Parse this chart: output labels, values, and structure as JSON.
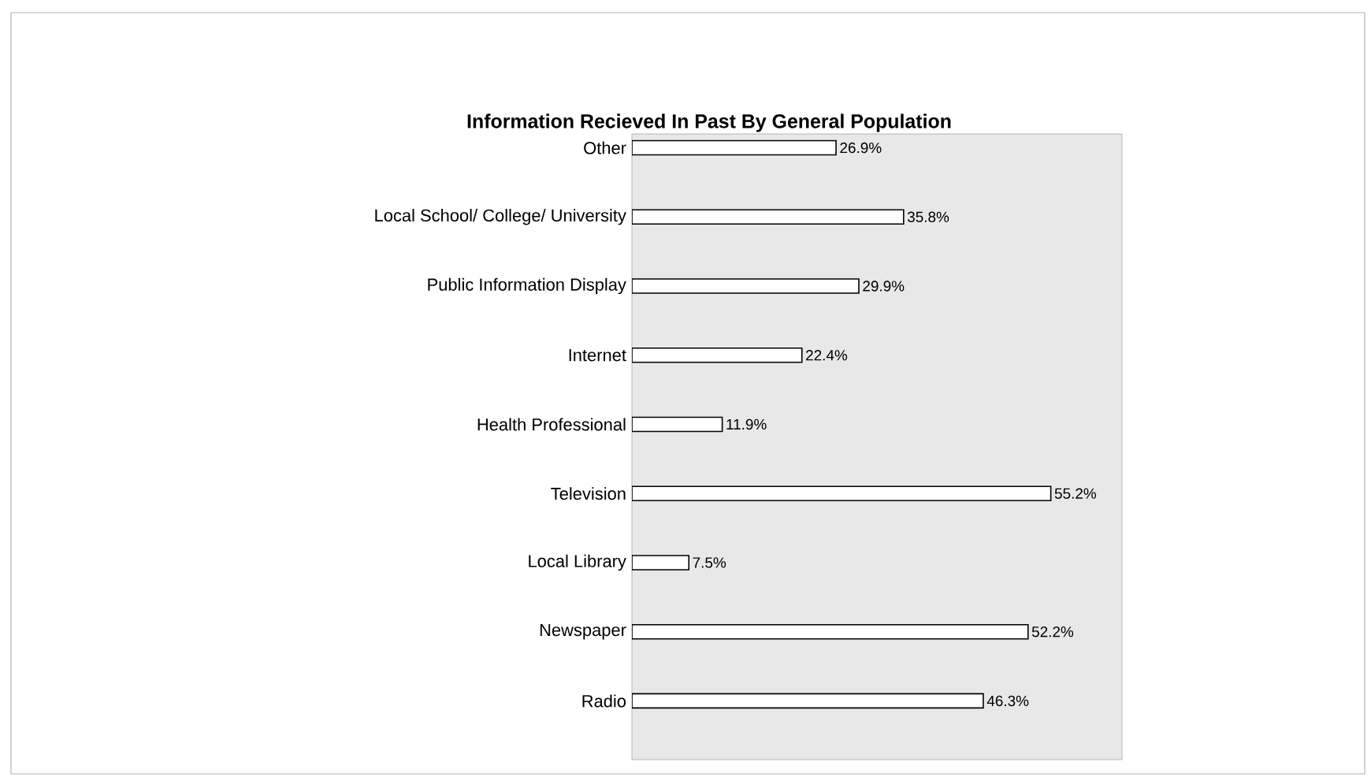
{
  "chart_data": {
    "type": "bar",
    "orientation": "horizontal",
    "title": "Information Recieved In Past By General Population",
    "categories": [
      "Other",
      "Local School/ College/ University",
      "Public Information Display",
      "Internet",
      "Health Professional",
      "Television",
      "Local Library",
      "Newspaper",
      "Radio"
    ],
    "values": [
      26.9,
      35.8,
      29.9,
      22.4,
      11.9,
      55.2,
      7.5,
      52.2,
      46.3
    ],
    "value_labels": [
      "26.9%",
      "35.8%",
      "29.9%",
      "22.4%",
      "11.9%",
      "55.2%",
      "7.5%",
      "52.2%",
      "46.3%"
    ],
    "color": "#ffffff"
  }
}
